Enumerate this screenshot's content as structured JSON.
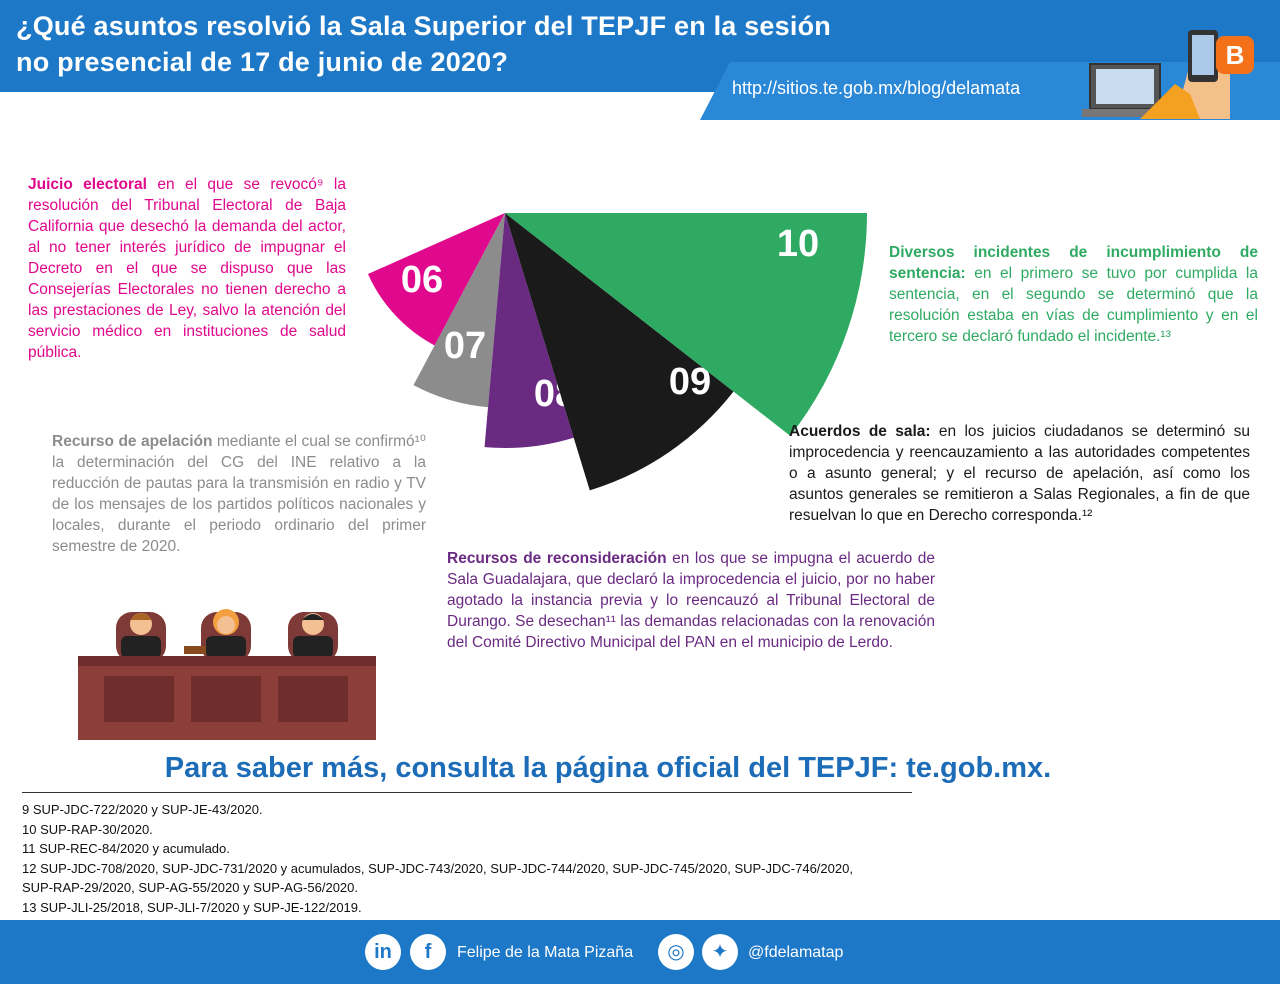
{
  "header": {
    "title_line1": "¿Qué asuntos resolvió la Sala Superior del TEPJF en la sesión",
    "title_line2": "no presencial de 17 de junio de 2020?",
    "url": "http://sitios.te.gob.mx/blog/delamata",
    "icons": [
      "laptop-icon",
      "hand-phone-icon",
      "blogger-icon"
    ]
  },
  "colors": {
    "header_blue": "#1d78c7",
    "pink": "#e0088c",
    "gray": "#8c8c8c",
    "purple": "#6a2a82",
    "black": "#1a1a1a",
    "green": "#2faa62",
    "cta_blue": "#1c6cb8"
  },
  "pie": {
    "slices": [
      {
        "label": "06",
        "color": "#e0088c"
      },
      {
        "label": "07",
        "color": "#8c8c8c"
      },
      {
        "label": "08",
        "color": "#6a2a82"
      },
      {
        "label": "09",
        "color": "#1a1a1a"
      },
      {
        "label": "10",
        "color": "#2faa62"
      }
    ]
  },
  "blocks": {
    "juicio": {
      "heading": "Juicio electoral",
      "text": " en el que se revocó⁹ la resolución del Tribunal Electoral de Baja California que desechó la demanda del actor, al no tener interés jurídico de impugnar el Decreto en el que se dispuso que las Consejerías Electorales no tienen derecho a las prestaciones de Ley, salvo la atención del servicio médico en instituciones de salud pública."
    },
    "apelacion": {
      "heading": "Recurso de apelación",
      "text": " mediante el cual se confirmó¹⁰ la determinación del CG del INE relativo a la reducción de pautas para la transmisión en radio y TV de los mensajes de los partidos políticos nacionales y locales, durante el periodo ordinario del primer semestre de 2020."
    },
    "reconsideracion": {
      "heading": "Recursos de reconsideración",
      "text": " en los que se impugna el acuerdo de Sala Guadalajara, que declaró la improcedencia el juicio, por no haber agotado la instancia previa y lo reencauzó al Tribunal Electoral de Durango. Se desechan¹¹ las demandas relacionadas con la renovación del Comité Directivo Municipal del PAN en el municipio de Lerdo."
    },
    "acuerdos": {
      "heading": "Acuerdos de sala:",
      "text": " en los juicios ciudadanos se determinó su improcedencia y reencauzamiento a las autoridades competentes o a asunto general; y el recurso de apelación, así como los asuntos generales se remitieron a Salas Regionales, a fin de que resuelvan lo que en Derecho corresponda.¹²"
    },
    "incidentes": {
      "heading": "Diversos incidentes de incumplimiento de sentencia:",
      "text": " en el primero se tuvo por cumplida la sentencia, en el segundo se determinó que la resolución estaba en vías de cumplimiento y en el tercero se declaró fundado el incidente.¹³"
    }
  },
  "cta": "Para saber más, consulta la página oficial del TEPJF: te.gob.mx.",
  "footnotes": [
    "9  SUP-JDC-722/2020 y SUP-JE-43/2020.",
    "10  SUP-RAP-30/2020.",
    "11  SUP-REC-84/2020 y acumulado.",
    "12  SUP-JDC-708/2020, SUP-JDC-731/2020 y acumulados, SUP-JDC-743/2020, SUP-JDC-744/2020, SUP-JDC-745/2020, SUP-JDC-746/2020,",
    "SUP-RAP-29/2020, SUP-AG-55/2020 y SUP-AG-56/2020.",
    "13  SUP-JLI-25/2018, SUP-JLI-7/2020 y SUP-JE-122/2019."
  ],
  "footer": {
    "name": "Felipe de la Mata Pizaña",
    "handle": "@fdelamatap",
    "linkedin_glyph": "in",
    "facebook_glyph": "f",
    "instagram_glyph": "◎",
    "twitter_glyph": "✦"
  }
}
